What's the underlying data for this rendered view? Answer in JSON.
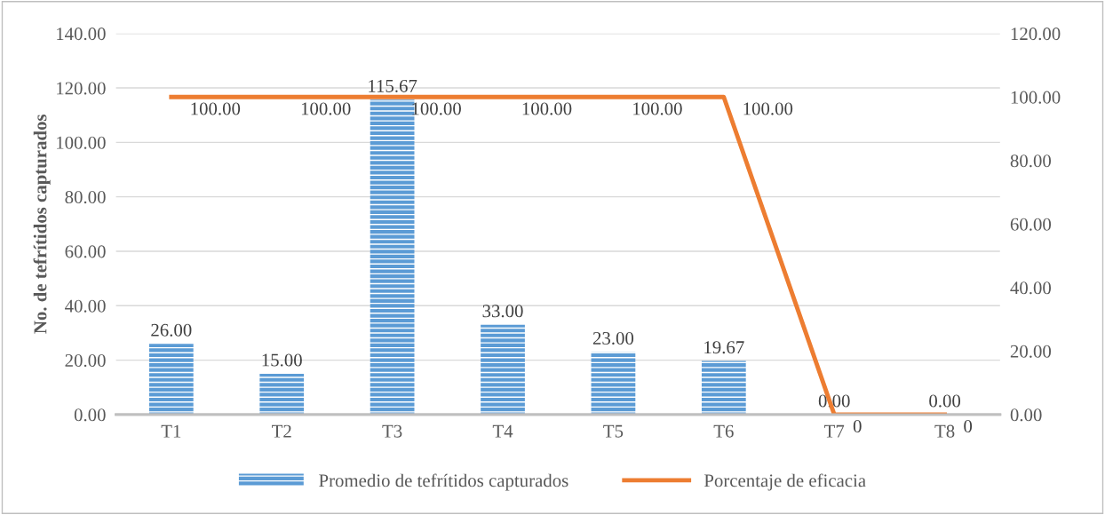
{
  "chart_data": {
    "type": "bar",
    "ylabel": "No. de tefrítidos capturados",
    "categories": [
      "T1",
      "T2",
      "T3",
      "T4",
      "T5",
      "T6",
      "T7",
      "T8"
    ],
    "series": [
      {
        "name": "Promedio de tefrítidos capturados",
        "color": "#5b9bd5",
        "values": [
          26.0,
          15.0,
          115.67,
          33.0,
          23.0,
          19.67,
          0.0,
          0.0
        ],
        "value_labels": [
          "26.00",
          "15.00",
          "115.67",
          "33.00",
          "23.00",
          "19.67",
          "0.00",
          "0.00"
        ]
      },
      {
        "name": "Porcentaje de eficacia",
        "type": "line",
        "axis": "y2",
        "color": "#ed7d31",
        "values": [
          100,
          100,
          100,
          100,
          100,
          100,
          0,
          0
        ],
        "value_labels": [
          "100.00",
          "100.00",
          "100.00",
          "100.00",
          "100.00",
          "100.00",
          "0",
          "0"
        ]
      }
    ],
    "ylim": [
      0,
      140
    ],
    "yticks": [
      {
        "value": 0,
        "label": "0.00"
      },
      {
        "value": 20,
        "label": "20.00"
      },
      {
        "value": 40,
        "label": "40.00"
      },
      {
        "value": 60,
        "label": "60.00"
      },
      {
        "value": 80,
        "label": "80.00"
      },
      {
        "value": 100,
        "label": "100.00"
      },
      {
        "value": 120,
        "label": "120.00"
      },
      {
        "value": 140,
        "label": "140.00"
      }
    ],
    "y2lim": [
      0,
      120
    ],
    "y2ticks": [
      {
        "value": 0,
        "label": "0.00"
      },
      {
        "value": 20,
        "label": "20.00"
      },
      {
        "value": 40,
        "label": "40.00"
      },
      {
        "value": 60,
        "label": "60.00"
      },
      {
        "value": 80,
        "label": "80.00"
      },
      {
        "value": 100,
        "label": "100.00"
      },
      {
        "value": 120,
        "label": "120.00"
      }
    ],
    "grid": "y",
    "legend": "bottom"
  }
}
